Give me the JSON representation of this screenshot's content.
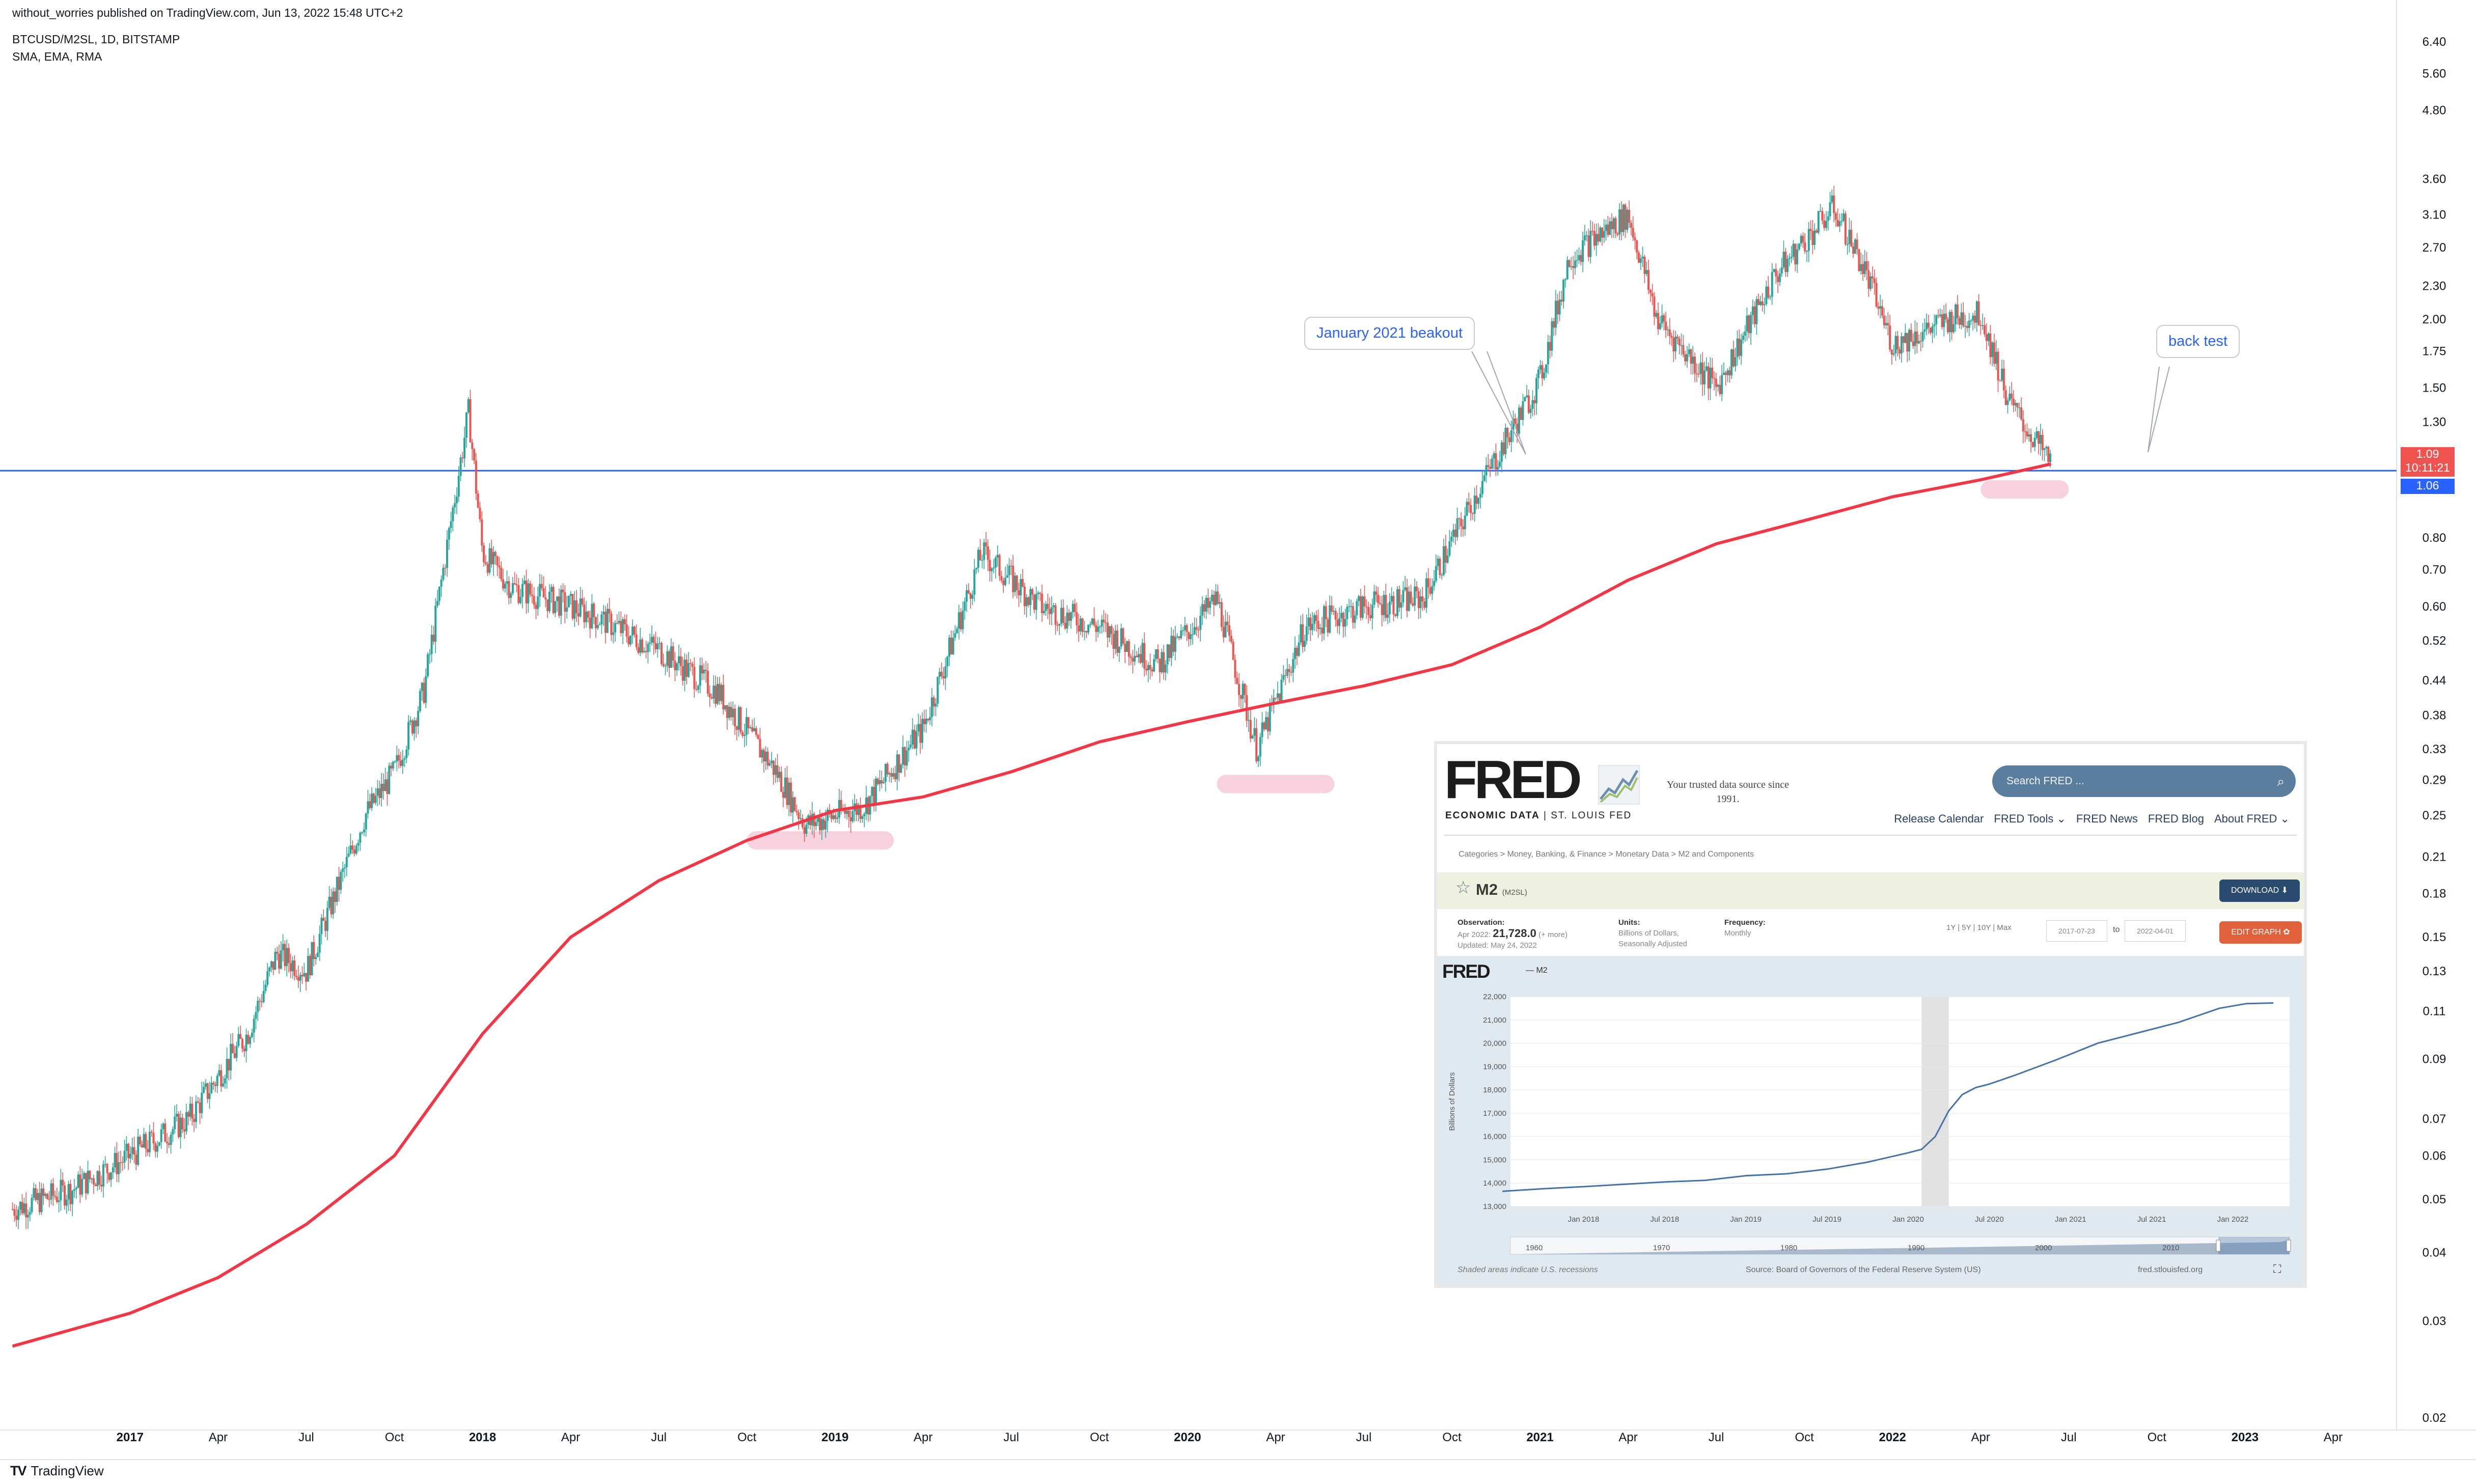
{
  "header": {
    "published": "without_worries published on TradingView.com, Jun 13, 2022 15:48 UTC+2",
    "symbol": "BTCUSD/M2SL, 1D, BITSTAMP",
    "indicators": "SMA, EMA, RMA"
  },
  "footer": {
    "brand_mark": "TV",
    "brand": "TradingView"
  },
  "colors": {
    "price_up": "#26a69a",
    "price_down": "#ef5350",
    "ma_line": "#f23645",
    "horizontal_line": "#2962ff",
    "support_zone": "#f7d1dd",
    "last_price_tag": "#ef5350",
    "line_price_tag": "#2962ff"
  },
  "annotations": {
    "breakout": "January 2021 beakout",
    "backtest": "back test"
  },
  "price_tags": {
    "last_price": "1.09",
    "countdown": "10:11:21",
    "line_level": "1.06"
  },
  "chart_data": [
    {
      "type": "line",
      "title": "BTCUSD/M2SL, 1D, BITSTAMP",
      "scale": "log",
      "ylim": [
        0.02,
        7.0
      ],
      "y_ticks": [
        0.02,
        0.03,
        0.04,
        0.05,
        0.06,
        0.07,
        0.09,
        0.11,
        0.13,
        0.15,
        0.18,
        0.21,
        0.25,
        0.29,
        0.33,
        0.38,
        0.44,
        0.52,
        0.6,
        0.7,
        0.8,
        1.3,
        1.5,
        1.75,
        2.0,
        2.3,
        2.7,
        3.1,
        3.6,
        4.8,
        5.6,
        6.4
      ],
      "x_ticks": [
        "2017",
        "Apr",
        "Jul",
        "Oct",
        "2018",
        "Apr",
        "Jul",
        "Oct",
        "2019",
        "Apr",
        "Jul",
        "Oct",
        "2020",
        "Apr",
        "Jul",
        "Oct",
        "2021",
        "Apr",
        "Jul",
        "Oct",
        "2022",
        "Apr",
        "Jul",
        "Oct",
        "2023",
        "Apr"
      ],
      "x_tick_years": [
        2017,
        2018,
        2019,
        2020,
        2021,
        2022,
        2023
      ],
      "grid": false,
      "series": [
        {
          "kind": "candles",
          "x": [
            "2016-09",
            "2016-11",
            "2017-01",
            "2017-03",
            "2017-05",
            "2017-06",
            "2017-07",
            "2017-09",
            "2017-10",
            "2017-11",
            "2017-12-17",
            "2018-01",
            "2018-02",
            "2018-04",
            "2018-05",
            "2018-07",
            "2018-09",
            "2018-11",
            "2018-12",
            "2019-02",
            "2019-04",
            "2019-06",
            "2019-08",
            "2019-10",
            "2019-12",
            "2020-02",
            "2020-03-12",
            "2020-05",
            "2020-07",
            "2020-09",
            "2020-11",
            "2021-01",
            "2021-02",
            "2021-04",
            "2021-05",
            "2021-07",
            "2021-09",
            "2021-11",
            "2021-12",
            "2022-01",
            "2022-03",
            "2022-04",
            "2022-05",
            "2022-06-13"
          ],
          "values": [
            0.048,
            0.052,
            0.06,
            0.07,
            0.1,
            0.14,
            0.13,
            0.25,
            0.3,
            0.42,
            1.36,
            0.75,
            0.65,
            0.6,
            0.57,
            0.5,
            0.42,
            0.3,
            0.24,
            0.26,
            0.36,
            0.75,
            0.6,
            0.55,
            0.47,
            0.62,
            0.33,
            0.55,
            0.6,
            0.62,
            1.0,
            1.55,
            2.6,
            3.1,
            2.0,
            1.5,
            2.4,
            3.2,
            2.5,
            1.8,
            2.0,
            2.05,
            1.4,
            1.09
          ]
        },
        {
          "kind": "line",
          "x": [
            "2016-09",
            "2017-01",
            "2017-04",
            "2017-07",
            "2017-10",
            "2018-01",
            "2018-04",
            "2018-07",
            "2018-10",
            "2019-01",
            "2019-04",
            "2019-07",
            "2019-10",
            "2020-01",
            "2020-04",
            "2020-07",
            "2020-10",
            "2021-01",
            "2021-04",
            "2021-07",
            "2021-10",
            "2022-01",
            "2022-04",
            "2022-06-13"
          ],
          "values": [
            0.027,
            0.031,
            0.036,
            0.045,
            0.06,
            0.1,
            0.15,
            0.19,
            0.225,
            0.255,
            0.27,
            0.3,
            0.34,
            0.37,
            0.4,
            0.43,
            0.47,
            0.55,
            0.67,
            0.78,
            0.86,
            0.95,
            1.02,
            1.09
          ]
        }
      ],
      "horizontal_line": 1.06,
      "support_zones": [
        {
          "x0": "2018-10",
          "x1": "2019-03",
          "y": 0.225
        },
        {
          "x0": "2020-02",
          "x1": "2020-06",
          "y": 0.285
        },
        {
          "x0": "2022-04",
          "x1": "2022-07",
          "y": 0.98
        }
      ]
    },
    {
      "type": "line",
      "scale": "linear",
      "ylabel": "Billions of Dollars",
      "ylim": [
        13000,
        22000
      ],
      "y_ticks": [
        "13,000",
        "14,000",
        "15,000",
        "16,000",
        "17,000",
        "18,000",
        "19,000",
        "20,000",
        "21,000",
        "22,000"
      ],
      "x_ticks": [
        "Jan 2018",
        "Jul 2018",
        "Jan 2019",
        "Jul 2019",
        "Jan 2020",
        "Jul 2020",
        "Jan 2021",
        "Jul 2021",
        "Jan 2022"
      ],
      "navigator_ticks": [
        "1960",
        "1970",
        "1980",
        "1990",
        "2000",
        "2010"
      ],
      "recession": {
        "x0": "2020-02",
        "x1": "2020-04"
      },
      "series": [
        {
          "name": "M2",
          "x": [
            "2017-07",
            "2017-10",
            "2018-01",
            "2018-04",
            "2018-07",
            "2018-10",
            "2019-01",
            "2019-04",
            "2019-07",
            "2019-10",
            "2020-01",
            "2020-02",
            "2020-03",
            "2020-04",
            "2020-05",
            "2020-06",
            "2020-07",
            "2020-09",
            "2020-12",
            "2021-03",
            "2021-06",
            "2021-09",
            "2021-12",
            "2022-02",
            "2022-04"
          ],
          "values": [
            13650,
            13760,
            13850,
            13950,
            14050,
            14120,
            14320,
            14400,
            14600,
            14900,
            15300,
            15450,
            16000,
            17100,
            17800,
            18100,
            18250,
            18650,
            19300,
            20000,
            20450,
            20900,
            21500,
            21700,
            21728
          ]
        }
      ]
    }
  ],
  "fred": {
    "logo": "FRED",
    "logo_sub_bold": "ECONOMIC DATA",
    "logo_sub_rest": "| ST. LOUIS FED",
    "tagline": "Your trusted data source since 1991.",
    "search_placeholder": "Search FRED ...",
    "nav": [
      "Release Calendar",
      "FRED Tools ⌄",
      "FRED News",
      "FRED Blog",
      "About FRED ⌄"
    ],
    "breadcrumb": "Categories > Money, Banking, & Finance > Monetary Data > M2 and Components",
    "series_title": "M2",
    "series_id": "(M2SL)",
    "download": "DOWNLOAD ⬇",
    "edit_graph": "EDIT GRAPH ✿",
    "observation_label": "Observation:",
    "observation_date": "Apr 2022:",
    "observation_value": "21,728.0",
    "observation_more": "(+ more)",
    "updated": "Updated: May 24, 2022",
    "units_label": "Units:",
    "units_value_1": "Billions of Dollars,",
    "units_value_2": "Seasonally Adjusted",
    "frequency_label": "Frequency:",
    "frequency_value": "Monthly",
    "ranges": "1Y | 5Y | 10Y | Max",
    "date_from": "2017-07-23",
    "date_to_word": "to",
    "date_to": "2022-04-01",
    "legend": "— M2",
    "footnote": "Shaded areas indicate U.S. recessions",
    "source": "Source: Board of Governors of the Federal Reserve System (US)",
    "url": "fred.stlouisfed.org"
  }
}
